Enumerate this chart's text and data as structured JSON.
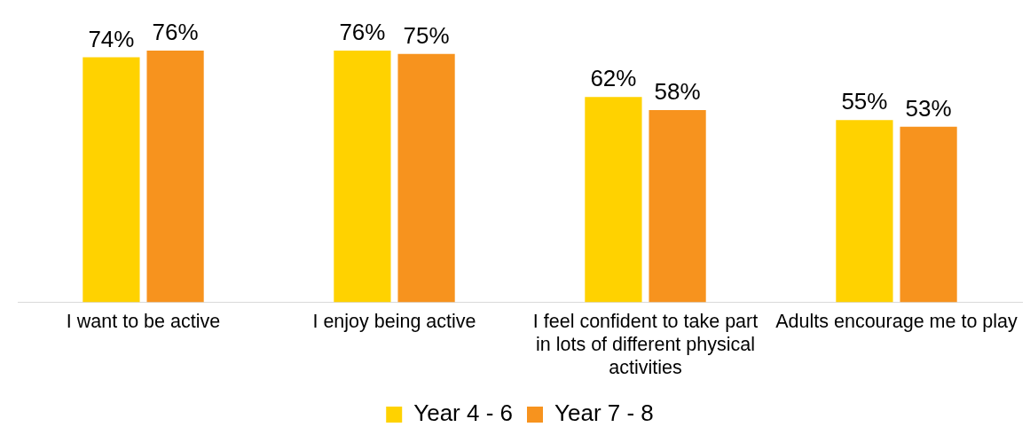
{
  "chart_data": {
    "type": "bar",
    "categories": [
      "I want to be active",
      "I enjoy being active",
      "I feel confident to take part in lots of different physical activities",
      "Adults encourage me to play"
    ],
    "series": [
      {
        "name": "Year 4 - 6",
        "color": "#ffd200",
        "values": [
          74,
          76,
          62,
          55
        ],
        "value_labels": [
          "74%",
          "76%",
          "62%",
          "55%"
        ]
      },
      {
        "name": "Year 7 - 8",
        "color": "#f7931e",
        "values": [
          76,
          75,
          58,
          53
        ],
        "value_labels": [
          "76%",
          "75%",
          "58%",
          "53%"
        ]
      }
    ],
    "legend": "bottom",
    "grid": false,
    "tick_labels": "x"
  }
}
